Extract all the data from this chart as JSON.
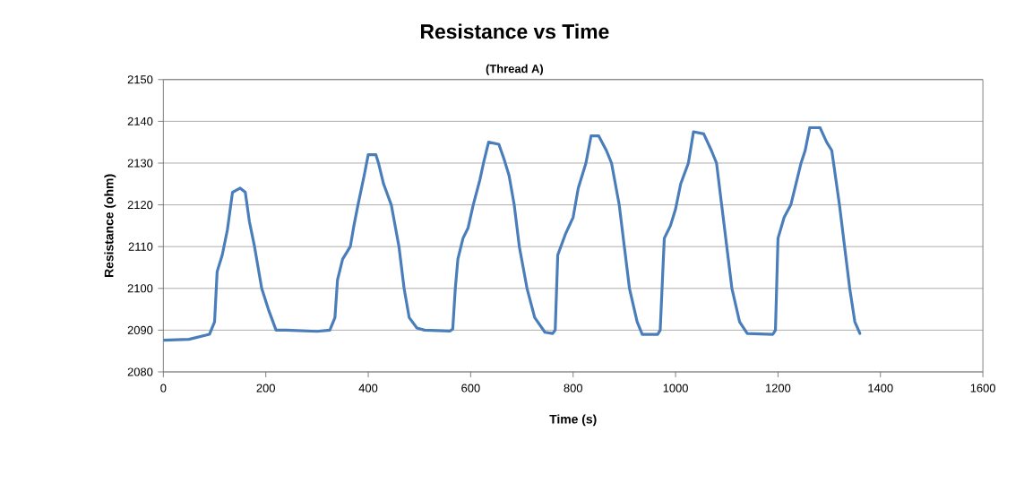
{
  "chart_data": {
    "type": "line",
    "title": "Resistance vs Time",
    "subtitle": "(Thread A)",
    "xlabel": "Time (s)",
    "ylabel": "Resistance (ohm)",
    "xlim": [
      0,
      1600
    ],
    "xticks": [
      0,
      200,
      400,
      600,
      800,
      1000,
      1200,
      1400,
      1600
    ],
    "ylim": [
      2080,
      2150
    ],
    "yticks": [
      2080,
      2090,
      2100,
      2110,
      2120,
      2130,
      2140,
      2150
    ],
    "grid": "y",
    "marker": "none",
    "line_style": "solid",
    "series": [
      {
        "color": "#4a7ebb",
        "x": [
          0,
          50,
          90,
          100,
          105,
          115,
          125,
          135,
          150,
          160,
          168,
          178,
          192,
          205,
          220,
          240,
          300,
          325,
          335,
          340,
          350,
          365,
          372,
          380,
          392,
          400,
          415,
          420,
          430,
          445,
          460,
          470,
          480,
          495,
          510,
          560,
          565,
          570,
          575,
          585,
          595,
          605,
          618,
          625,
          635,
          655,
          665,
          675,
          685,
          695,
          710,
          725,
          745,
          760,
          765,
          770,
          785,
          800,
          810,
          825,
          835,
          850,
          865,
          875,
          890,
          900,
          910,
          925,
          935,
          965,
          970,
          978,
          990,
          1000,
          1010,
          1025,
          1035,
          1055,
          1070,
          1080,
          1090,
          1100,
          1110,
          1125,
          1140,
          1190,
          1195,
          1200,
          1212,
          1225,
          1235,
          1245,
          1253,
          1262,
          1282,
          1295,
          1305,
          1320,
          1330,
          1340,
          1350,
          1360
        ],
        "values": [
          2087.6,
          2087.8,
          2089,
          2092,
          2104,
          2108,
          2114,
          2123,
          2124,
          2123,
          2116,
          2110,
          2100,
          2095,
          2090,
          2090,
          2089.7,
          2090,
          2093,
          2102,
          2107,
          2110,
          2115,
          2120,
          2127,
          2132,
          2132,
          2130,
          2125,
          2120,
          2110,
          2100,
          2093,
          2090.5,
          2090,
          2089.8,
          2090.3,
          2100,
          2107,
          2112,
          2114.5,
          2120,
          2126,
          2130,
          2135,
          2134.5,
          2131,
          2127,
          2120,
          2110,
          2100,
          2093,
          2089.5,
          2089.2,
          2090,
          2108,
          2113,
          2117,
          2124,
          2130,
          2136.5,
          2136.5,
          2133,
          2130,
          2120,
          2110,
          2100,
          2092,
          2089,
          2089,
          2090,
          2112,
          2115,
          2119,
          2125,
          2130,
          2137.5,
          2137,
          2133,
          2130,
          2120,
          2110,
          2100,
          2092,
          2089.2,
          2089,
          2090,
          2112,
          2117,
          2120,
          2125,
          2130,
          2133,
          2138.5,
          2138.5,
          2135,
          2133,
          2120,
          2110,
          2100,
          2092,
          2089.2
        ]
      }
    ]
  }
}
